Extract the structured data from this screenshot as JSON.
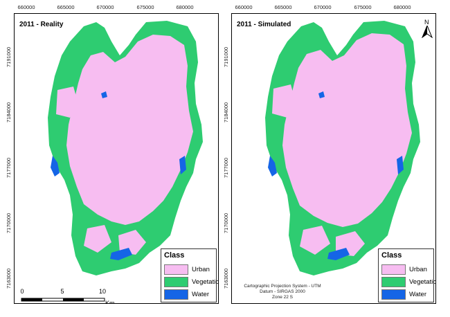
{
  "panels": [
    {
      "title": "2011 - Reality",
      "x_ticks": [
        "660000",
        "665000",
        "670000",
        "675000",
        "680000"
      ],
      "y_ticks": [
        "7191000",
        "7184000",
        "7177000",
        "7170000",
        "7163000"
      ]
    },
    {
      "title": "2011 - Simulated",
      "x_ticks": [
        "660000",
        "665000",
        "670000",
        "675000",
        "680000"
      ],
      "y_ticks": [
        "7191000",
        "7184000",
        "7177000",
        "7170000",
        "7163000"
      ]
    }
  ],
  "legend": {
    "title": "Class",
    "items": [
      {
        "label": "Urban",
        "color": "#f7bdf1"
      },
      {
        "label": "Vegetation",
        "color": "#2ecc71"
      },
      {
        "label": "Water",
        "color": "#1565e6"
      }
    ]
  },
  "scale": {
    "labels": [
      "0",
      "5",
      "10"
    ],
    "unit": "Km"
  },
  "projection_lines": [
    "Cartographic Projection System - UTM",
    "Datum - SIRGAS 2000",
    "Zone 22 S"
  ],
  "north_label": "N",
  "colors": {
    "urban": "#f7bdf1",
    "vegetation": "#2ecc71",
    "water": "#1565e6"
  }
}
